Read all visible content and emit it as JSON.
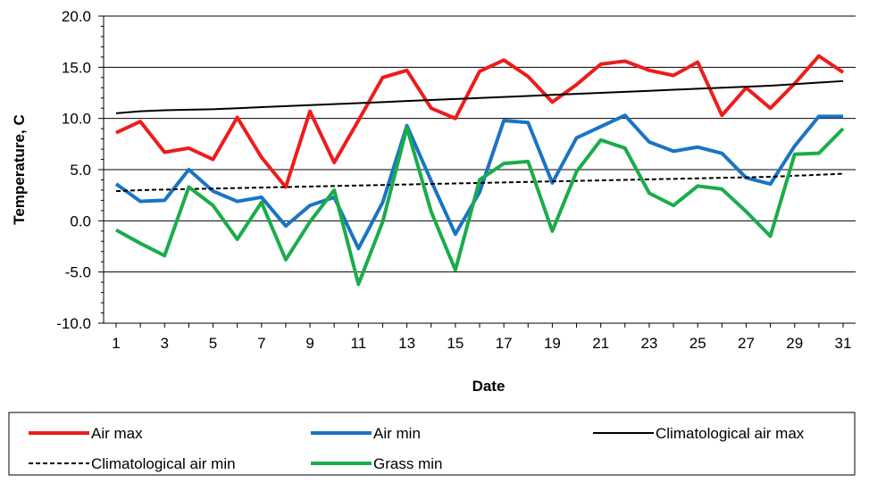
{
  "chart_data": {
    "type": "line",
    "xlabel": "Date",
    "ylabel": "Temperature, C",
    "ylim": [
      -10,
      20
    ],
    "yticks": [
      -10,
      -5,
      0,
      5,
      10,
      15,
      20
    ],
    "ytick_labels": [
      "-10.0",
      "-5.0",
      "0.0",
      "5.0",
      "10.0",
      "15.0",
      "20.0"
    ],
    "xlim": [
      1,
      31
    ],
    "xticks": [
      1,
      3,
      5,
      7,
      9,
      11,
      13,
      15,
      17,
      19,
      21,
      23,
      25,
      27,
      29,
      31
    ],
    "xtick_labels": [
      "1",
      "3",
      "5",
      "7",
      "9",
      "11",
      "13",
      "15",
      "17",
      "19",
      "21",
      "23",
      "25",
      "27",
      "29",
      "31"
    ],
    "grid": "horizontal",
    "legend_placement": "bottom",
    "x": [
      1,
      2,
      3,
      4,
      5,
      6,
      7,
      8,
      9,
      10,
      11,
      12,
      13,
      14,
      15,
      16,
      17,
      18,
      19,
      20,
      21,
      22,
      23,
      24,
      25,
      26,
      27,
      28,
      29,
      30,
      31
    ],
    "series": [
      {
        "name": "Air max",
        "color": "#ee1c1c",
        "style": "solid",
        "width": "thick",
        "values": [
          8.6,
          9.7,
          6.7,
          7.1,
          6.0,
          10.1,
          6.2,
          3.3,
          10.7,
          5.7,
          9.8,
          14.0,
          14.7,
          11.0,
          10.0,
          14.6,
          15.7,
          14.1,
          11.6,
          13.3,
          15.3,
          15.6,
          14.7,
          14.2,
          15.5,
          10.3,
          13.0,
          11.0,
          13.4,
          16.1,
          14.5
        ]
      },
      {
        "name": "Air min",
        "color": "#1a74c4",
        "style": "solid",
        "width": "thick",
        "values": [
          3.6,
          1.9,
          2.0,
          5.0,
          2.9,
          1.9,
          2.3,
          -0.5,
          1.5,
          2.3,
          -2.7,
          1.8,
          9.3,
          3.9,
          -1.3,
          2.8,
          9.8,
          9.6,
          3.7,
          8.1,
          9.2,
          10.3,
          7.7,
          6.8,
          7.2,
          6.6,
          4.2,
          3.6,
          7.3,
          10.2,
          10.2
        ]
      },
      {
        "name": "Climatological air max",
        "color": "#000000",
        "style": "solid",
        "width": "thin",
        "values": [
          10.5,
          10.7,
          10.8,
          10.85,
          10.9,
          11.0,
          11.1,
          11.2,
          11.3,
          11.4,
          11.5,
          11.6,
          11.7,
          11.8,
          11.9,
          12.0,
          12.1,
          12.2,
          12.3,
          12.4,
          12.5,
          12.6,
          12.7,
          12.8,
          12.9,
          13.0,
          13.1,
          13.2,
          13.35,
          13.5,
          13.65
        ]
      },
      {
        "name": "Climatological air min",
        "color": "#000000",
        "style": "dashed",
        "width": "thin",
        "values": [
          2.9,
          3.0,
          3.05,
          3.1,
          3.15,
          3.2,
          3.25,
          3.3,
          3.35,
          3.4,
          3.45,
          3.5,
          3.55,
          3.6,
          3.65,
          3.7,
          3.75,
          3.8,
          3.85,
          3.9,
          3.95,
          4.0,
          4.05,
          4.1,
          4.15,
          4.2,
          4.25,
          4.3,
          4.4,
          4.5,
          4.6
        ]
      },
      {
        "name": "Grass min",
        "color": "#1aac4a",
        "style": "solid",
        "width": "thick",
        "values": [
          -0.9,
          -2.2,
          -3.4,
          3.3,
          1.5,
          -1.8,
          1.8,
          -3.8,
          -0.1,
          3.0,
          -6.2,
          -0.1,
          9.1,
          0.9,
          -4.8,
          4.0,
          5.6,
          5.8,
          -1.0,
          4.8,
          7.9,
          7.1,
          2.7,
          1.5,
          3.4,
          3.1,
          0.9,
          -1.5,
          6.5,
          6.6,
          9.0
        ]
      }
    ],
    "legend": [
      {
        "label": "Air max"
      },
      {
        "label": "Air min"
      },
      {
        "label": "Climatological air max"
      },
      {
        "label": "Climatological air min"
      },
      {
        "label": "Grass min"
      }
    ]
  }
}
